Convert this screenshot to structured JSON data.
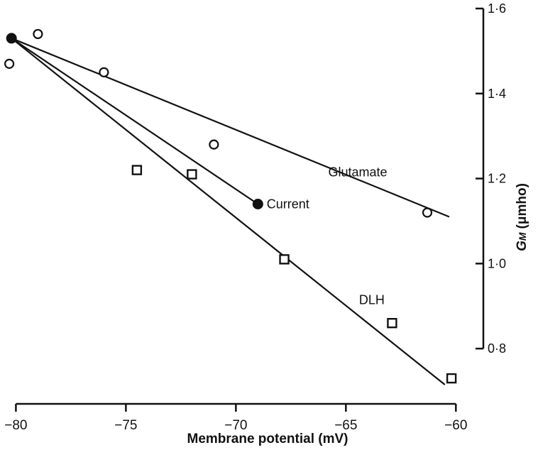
{
  "chart_data": {
    "type": "scatter",
    "xlabel": "Membrane potential (mV)",
    "ylabel": "G",
    "ylabel_sub": "M",
    "ylabel_unit": "(μmho)",
    "xlim": [
      -80.4,
      -59.3
    ],
    "ylim": [
      0.675,
      1.6
    ],
    "x_ticks": [
      -80,
      -75,
      -70,
      -65,
      -60
    ],
    "x_tick_labels": [
      "−80",
      "−75",
      "−70",
      "−65",
      "−60"
    ],
    "y_ticks": [
      0.8,
      1.0,
      1.2,
      1.4,
      1.6
    ],
    "y_tick_labels": [
      "0·8",
      "1·0",
      "1·2",
      "1·4",
      "1·6"
    ],
    "series": [
      {
        "name": "Glutamate",
        "marker": "open-circle",
        "points": [
          [
            -80.3,
            1.47
          ],
          [
            -79.0,
            1.54
          ],
          [
            -76.0,
            1.45
          ],
          [
            -71.0,
            1.28
          ],
          [
            -61.3,
            1.12
          ]
        ],
        "fit_line": [
          [
            -80.2,
            1.53
          ],
          [
            -60.3,
            1.11
          ]
        ]
      },
      {
        "name": "Current",
        "marker": "filled-circle",
        "points": [
          [
            -80.2,
            1.53
          ],
          [
            -69.0,
            1.14
          ]
        ],
        "fit_line": [
          [
            -80.2,
            1.53
          ],
          [
            -69.0,
            1.14
          ]
        ]
      },
      {
        "name": "DLH",
        "marker": "open-square",
        "points": [
          [
            -74.5,
            1.22
          ],
          [
            -72.0,
            1.21
          ],
          [
            -67.8,
            1.01
          ],
          [
            -62.9,
            0.86
          ],
          [
            -60.2,
            0.73
          ]
        ],
        "fit_line": [
          [
            -80.2,
            1.53
          ],
          [
            -60.5,
            0.715
          ]
        ]
      }
    ],
    "labels": [
      {
        "text": "Glutamate",
        "series": "Glutamate",
        "x": -65.8,
        "y": 1.215
      },
      {
        "text": "Current",
        "series": "Current",
        "x": -68.6,
        "y": 1.14
      },
      {
        "text": "DLH",
        "series": "DLH",
        "x": -64.4,
        "y": 0.915
      }
    ],
    "grid": false,
    "legend": "none"
  }
}
